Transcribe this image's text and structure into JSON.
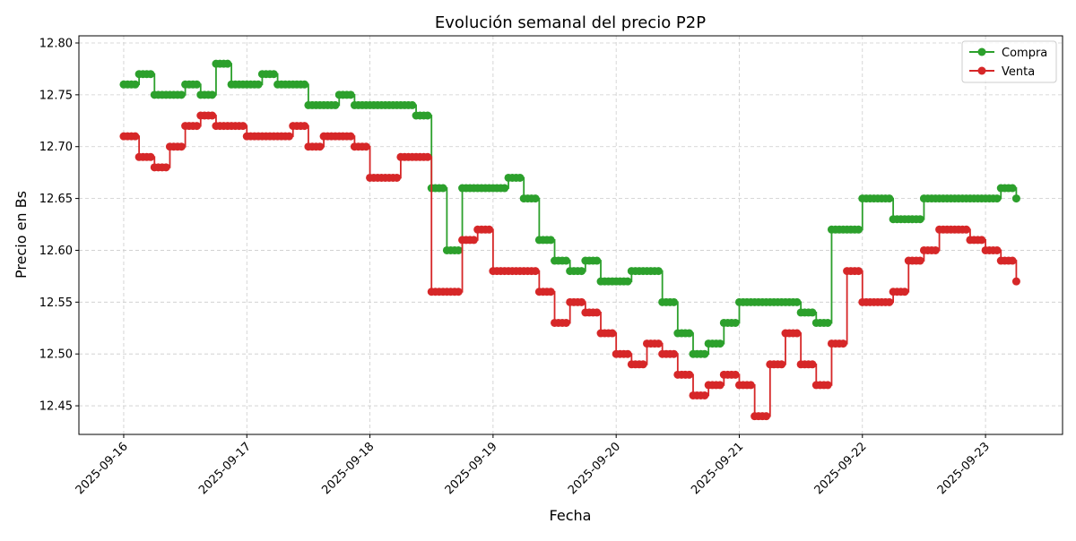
{
  "chart_data": {
    "type": "line",
    "title": "Evolución semanal del precio P2P",
    "xlabel": "Fecha",
    "ylabel": "Precio en Bs",
    "xlim": [
      "2025-09-15 15:16",
      "2025-09-23 15:01"
    ],
    "ylim": [
      12.4224,
      12.8069
    ],
    "x_ticks": [
      "2025-09-16",
      "2025-09-17",
      "2025-09-18",
      "2025-09-19",
      "2025-09-20",
      "2025-09-21",
      "2025-09-22",
      "2025-09-23"
    ],
    "y_ticks": [
      "12.45",
      "12.50",
      "12.55",
      "12.60",
      "12.65",
      "12.70",
      "12.75",
      "12.80"
    ],
    "grid": true,
    "legend": "top-right",
    "x": [
      "2025-09-16 00:00",
      "2025-09-16 03:00",
      "2025-09-16 06:00",
      "2025-09-16 09:00",
      "2025-09-16 12:00",
      "2025-09-16 15:00",
      "2025-09-16 18:00",
      "2025-09-16 21:00",
      "2025-09-17 00:00",
      "2025-09-17 03:00",
      "2025-09-17 06:00",
      "2025-09-17 09:00",
      "2025-09-17 12:00",
      "2025-09-17 15:00",
      "2025-09-17 18:00",
      "2025-09-17 21:00",
      "2025-09-18 00:00",
      "2025-09-18 03:00",
      "2025-09-18 06:00",
      "2025-09-18 09:00",
      "2025-09-18 12:00",
      "2025-09-18 15:00",
      "2025-09-18 18:00",
      "2025-09-18 21:00",
      "2025-09-19 00:00",
      "2025-09-19 03:00",
      "2025-09-19 06:00",
      "2025-09-19 09:00",
      "2025-09-19 12:00",
      "2025-09-19 15:00",
      "2025-09-19 18:00",
      "2025-09-19 21:00",
      "2025-09-20 00:00",
      "2025-09-20 03:00",
      "2025-09-20 06:00",
      "2025-09-20 09:00",
      "2025-09-20 12:00",
      "2025-09-20 15:00",
      "2025-09-20 18:00",
      "2025-09-20 21:00",
      "2025-09-21 00:00",
      "2025-09-21 03:00",
      "2025-09-21 06:00",
      "2025-09-21 09:00",
      "2025-09-21 12:00",
      "2025-09-21 15:00",
      "2025-09-21 18:00",
      "2025-09-21 21:00",
      "2025-09-22 00:00",
      "2025-09-22 03:00",
      "2025-09-22 06:00",
      "2025-09-22 09:00",
      "2025-09-22 12:00",
      "2025-09-22 15:00",
      "2025-09-22 18:00",
      "2025-09-22 21:00",
      "2025-09-23 00:00",
      "2025-09-23 03:00",
      "2025-09-23 06:00"
    ],
    "series": [
      {
        "name": "Compra",
        "color": "#2ca02c",
        "marker": "circle",
        "values": [
          12.76,
          12.77,
          12.75,
          12.75,
          12.76,
          12.75,
          12.78,
          12.76,
          12.76,
          12.77,
          12.76,
          12.76,
          12.74,
          12.74,
          12.75,
          12.74,
          12.74,
          12.74,
          12.74,
          12.73,
          12.66,
          12.6,
          12.66,
          12.66,
          12.66,
          12.67,
          12.65,
          12.61,
          12.59,
          12.58,
          12.59,
          12.57,
          12.57,
          12.58,
          12.58,
          12.55,
          12.52,
          12.5,
          12.51,
          12.53,
          12.55,
          12.55,
          12.55,
          12.55,
          12.54,
          12.53,
          12.62,
          12.62,
          12.65,
          12.65,
          12.63,
          12.63,
          12.65,
          12.65,
          12.65,
          12.65,
          12.65,
          12.66,
          12.65
        ]
      },
      {
        "name": "Venta",
        "color": "#d62728",
        "marker": "circle",
        "values": [
          12.71,
          12.69,
          12.68,
          12.7,
          12.72,
          12.73,
          12.72,
          12.72,
          12.71,
          12.71,
          12.71,
          12.72,
          12.7,
          12.71,
          12.71,
          12.7,
          12.67,
          12.67,
          12.69,
          12.69,
          12.56,
          12.56,
          12.61,
          12.62,
          12.58,
          12.58,
          12.58,
          12.56,
          12.53,
          12.55,
          12.54,
          12.52,
          12.5,
          12.49,
          12.51,
          12.5,
          12.48,
          12.46,
          12.47,
          12.48,
          12.47,
          12.44,
          12.49,
          12.52,
          12.49,
          12.47,
          12.51,
          12.58,
          12.55,
          12.55,
          12.56,
          12.59,
          12.6,
          12.62,
          12.62,
          12.61,
          12.6,
          12.59,
          12.57
        ]
      }
    ]
  }
}
